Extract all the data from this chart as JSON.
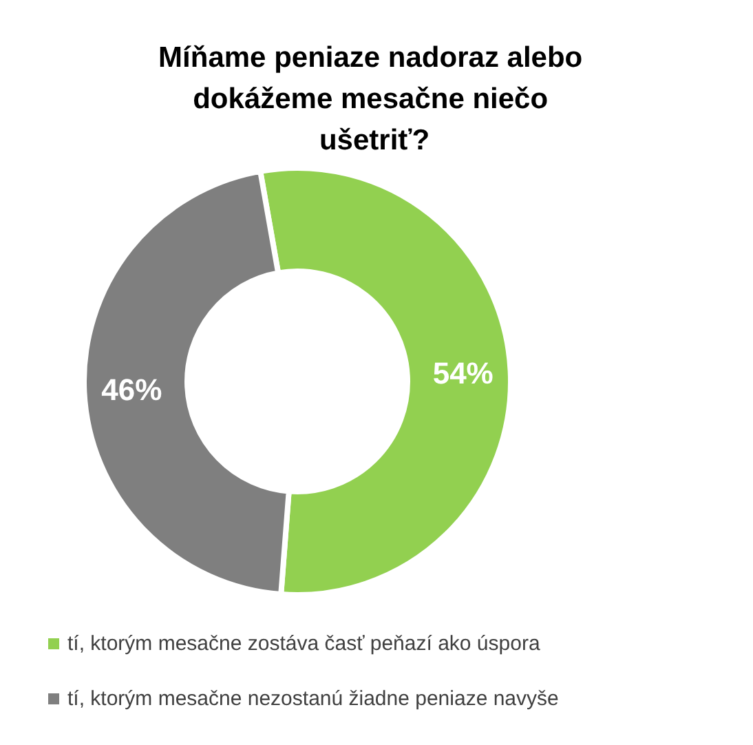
{
  "chart_data": {
    "type": "donut",
    "title": "Míňame peniaze nadoraz alebo dokážeme mesačne niečo ušetriť?",
    "categories": [
      "tí, ktorým mesačne zostáva časť peňazí ako úspora",
      "tí, ktorým mesačne nezostanú žiadne peniaze navyše"
    ],
    "values": [
      54,
      46
    ],
    "colors": [
      "#92d050",
      "#7f7f7f"
    ],
    "value_labels": [
      "54%",
      "46%"
    ],
    "legend": "bottom"
  }
}
